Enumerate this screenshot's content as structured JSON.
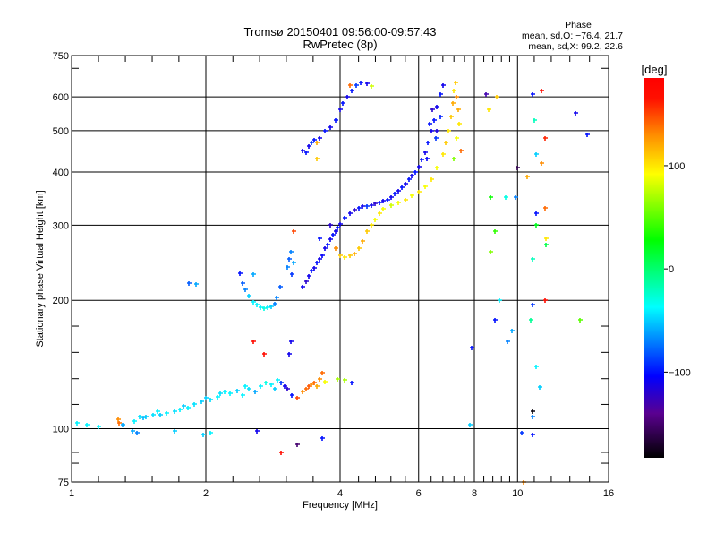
{
  "chart_data": {
    "type": "scatter",
    "title": "Tromsø 20150401 09:56:00-09:57:43",
    "subtitle": "RwPretec (8p)",
    "xlabel": "Frequency [MHz]",
    "ylabel": "Stationary phase Virtual Height [km]",
    "xscale": "log2",
    "yscale": "log10",
    "xlim": [
      1,
      16
    ],
    "ylim": [
      75,
      750
    ],
    "xticks": [
      {
        "value": 1,
        "label": "1"
      },
      {
        "value": 2,
        "label": "2"
      },
      {
        "value": 4,
        "label": "4"
      },
      {
        "value": 6,
        "label": "6"
      },
      {
        "value": 8,
        "label": "8"
      },
      {
        "value": 10,
        "label": "10"
      },
      {
        "value": 16,
        "label": "16"
      }
    ],
    "yticks": [
      {
        "value": 75,
        "label": "75"
      },
      {
        "value": 100,
        "label": "100"
      },
      {
        "value": 200,
        "label": "200"
      },
      {
        "value": 300,
        "label": "300"
      },
      {
        "value": 400,
        "label": "400"
      },
      {
        "value": 500,
        "label": "500"
      },
      {
        "value": 600,
        "label": "600"
      },
      {
        "value": 750,
        "label": "750"
      }
    ],
    "grid": true,
    "stats": {
      "heading": "Phase",
      "line_o": "mean, sd,O: −76.4, 21.7",
      "line_x": "mean, sd,X:  99.2, 22.6"
    },
    "colorbar": {
      "label": "[deg]",
      "range": [
        -183,
        185
      ],
      "ticks": [
        {
          "value": 100,
          "label": "100"
        },
        {
          "value": 0,
          "label": "0"
        },
        {
          "value": -100,
          "label": "−100"
        }
      ],
      "stops": [
        {
          "value": 185,
          "color": "#ff0000"
        },
        {
          "value": 165,
          "color": "#ff1000"
        },
        {
          "value": 130,
          "color": "#ff8c00"
        },
        {
          "value": 92,
          "color": "#ffff00"
        },
        {
          "value": 28,
          "color": "#00ff00"
        },
        {
          "value": -37,
          "color": "#00ffff"
        },
        {
          "value": -104,
          "color": "#0000ff"
        },
        {
          "value": -140,
          "color": "#5a0090"
        },
        {
          "value": -183,
          "color": "#000000"
        }
      ]
    },
    "point_fields": [
      "frequency_mhz",
      "height_km",
      "phase_deg"
    ],
    "points": [
      [
        1.03,
        103,
        -40
      ],
      [
        1.08,
        102,
        -40
      ],
      [
        1.15,
        101,
        -40
      ],
      [
        1.3,
        102,
        -60
      ],
      [
        1.38,
        104,
        -40
      ],
      [
        1.42,
        107,
        -45
      ],
      [
        1.47,
        107,
        -50
      ],
      [
        1.52,
        108,
        -45
      ],
      [
        1.58,
        108,
        -50
      ],
      [
        1.63,
        109,
        -40
      ],
      [
        1.7,
        110,
        -45
      ],
      [
        1.75,
        111,
        -40
      ],
      [
        1.82,
        112,
        -40
      ],
      [
        1.88,
        114,
        -45
      ],
      [
        1.95,
        116,
        -50
      ],
      [
        2.0,
        118,
        -50
      ],
      [
        2.05,
        117,
        -45
      ],
      [
        2.12,
        119,
        -40
      ],
      [
        2.2,
        122,
        -40
      ],
      [
        2.27,
        121,
        -40
      ],
      [
        2.35,
        123,
        -50
      ],
      [
        2.42,
        120,
        -40
      ],
      [
        2.5,
        124,
        -45
      ],
      [
        2.58,
        122,
        -60
      ],
      [
        2.65,
        126,
        -40
      ],
      [
        2.72,
        128,
        -30
      ],
      [
        2.8,
        127,
        -40
      ],
      [
        2.9,
        130,
        -40
      ],
      [
        2.95,
        128,
        -90
      ],
      [
        3.0,
        126,
        -110
      ],
      [
        3.05,
        124,
        -120
      ],
      [
        3.08,
        150,
        -110
      ],
      [
        3.1,
        160,
        -110
      ],
      [
        3.12,
        120,
        -100
      ],
      [
        1.45,
        106,
        -55
      ],
      [
        1.56,
        110,
        -40
      ],
      [
        1.78,
        113,
        -50
      ],
      [
        2.15,
        121,
        -45
      ],
      [
        2.45,
        126,
        -40
      ],
      [
        2.85,
        124,
        -50
      ],
      [
        1.37,
        99,
        -60
      ],
      [
        1.4,
        98,
        -70
      ],
      [
        1.7,
        99,
        -50
      ],
      [
        1.97,
        97,
        -50
      ],
      [
        2.05,
        98,
        -40
      ],
      [
        2.6,
        99,
        -110
      ],
      [
        1.28,
        103,
        140
      ],
      [
        1.27,
        105,
        130
      ],
      [
        3.2,
        118,
        150
      ],
      [
        3.3,
        122,
        130
      ],
      [
        3.35,
        124,
        140
      ],
      [
        3.4,
        126,
        145
      ],
      [
        3.45,
        127,
        130
      ],
      [
        3.5,
        128,
        140
      ],
      [
        3.55,
        126,
        120
      ],
      [
        3.6,
        131,
        130
      ],
      [
        3.65,
        135,
        140
      ],
      [
        3.7,
        129,
        90
      ],
      [
        3.95,
        131,
        70
      ],
      [
        4.1,
        130,
        70
      ],
      [
        4.25,
        128,
        -100
      ],
      [
        2.55,
        160,
        170
      ],
      [
        2.7,
        150,
        170
      ],
      [
        2.95,
        88,
        170
      ],
      [
        3.2,
        92,
        -150
      ],
      [
        3.65,
        95,
        -100
      ],
      [
        2.42,
        220,
        -80
      ],
      [
        2.45,
        212,
        -70
      ],
      [
        2.5,
        205,
        -50
      ],
      [
        2.55,
        198,
        -40
      ],
      [
        2.6,
        195,
        -40
      ],
      [
        2.65,
        193,
        -40
      ],
      [
        2.7,
        192,
        -30
      ],
      [
        2.75,
        193,
        -40
      ],
      [
        2.8,
        194,
        -50
      ],
      [
        2.85,
        196,
        -70
      ],
      [
        2.88,
        203,
        -70
      ],
      [
        2.93,
        215,
        -80
      ],
      [
        2.55,
        230,
        -60
      ],
      [
        1.83,
        220,
        -80
      ],
      [
        1.9,
        218,
        -60
      ],
      [
        2.38,
        232,
        -100
      ],
      [
        3.05,
        240,
        -70
      ],
      [
        3.07,
        250,
        -80
      ],
      [
        3.1,
        260,
        -70
      ],
      [
        3.15,
        245,
        -60
      ],
      [
        3.12,
        230,
        -90
      ],
      [
        3.15,
        290,
        150
      ],
      [
        3.3,
        215,
        -110
      ],
      [
        3.35,
        222,
        -120
      ],
      [
        3.4,
        228,
        -110
      ],
      [
        3.45,
        235,
        -100
      ],
      [
        3.5,
        238,
        -110
      ],
      [
        3.55,
        245,
        -100
      ],
      [
        3.6,
        250,
        -110
      ],
      [
        3.65,
        255,
        -105
      ],
      [
        3.7,
        265,
        -110
      ],
      [
        3.75,
        270,
        -100
      ],
      [
        3.8,
        278,
        -110
      ],
      [
        3.85,
        285,
        -100
      ],
      [
        3.9,
        290,
        -110
      ],
      [
        3.95,
        296,
        -100
      ],
      [
        4.0,
        302,
        -110
      ],
      [
        4.1,
        312,
        -100
      ],
      [
        4.2,
        320,
        -110
      ],
      [
        4.3,
        326,
        -120
      ],
      [
        4.4,
        330,
        -100
      ],
      [
        4.5,
        333,
        -110
      ],
      [
        4.6,
        333,
        -90
      ],
      [
        4.7,
        335,
        -110
      ],
      [
        4.8,
        338,
        -120
      ],
      [
        4.9,
        340,
        -100
      ],
      [
        5.0,
        342,
        -110
      ],
      [
        5.1,
        345,
        -100
      ],
      [
        5.2,
        350,
        -110
      ],
      [
        5.3,
        356,
        -100
      ],
      [
        5.4,
        362,
        -110
      ],
      [
        5.5,
        368,
        -100
      ],
      [
        5.6,
        375,
        -110
      ],
      [
        5.7,
        384,
        -100
      ],
      [
        5.8,
        392,
        -110
      ],
      [
        5.9,
        400,
        -100
      ],
      [
        6.0,
        412,
        -110
      ],
      [
        6.1,
        428,
        -100
      ],
      [
        6.2,
        445,
        -110
      ],
      [
        6.3,
        470,
        -100
      ],
      [
        6.4,
        500,
        -110
      ],
      [
        6.5,
        530,
        -100
      ],
      [
        6.6,
        570,
        -110
      ],
      [
        6.7,
        610,
        -100
      ],
      [
        6.8,
        640,
        -110
      ],
      [
        6.45,
        560,
        -120
      ],
      [
        6.55,
        480,
        -90
      ],
      [
        6.7,
        540,
        -95
      ],
      [
        3.6,
        280,
        -100
      ],
      [
        3.8,
        300,
        -120
      ],
      [
        6.25,
        430,
        -105
      ],
      [
        6.6,
        500,
        -115
      ],
      [
        6.35,
        520,
        -100
      ],
      [
        3.9,
        265,
        130
      ],
      [
        4.0,
        255,
        110
      ],
      [
        4.1,
        253,
        100
      ],
      [
        4.2,
        255,
        110
      ],
      [
        4.3,
        258,
        120
      ],
      [
        4.4,
        265,
        110
      ],
      [
        4.5,
        275,
        120
      ],
      [
        4.6,
        290,
        110
      ],
      [
        4.7,
        300,
        100
      ],
      [
        4.8,
        310,
        90
      ],
      [
        4.9,
        320,
        100
      ],
      [
        5.0,
        328,
        90
      ],
      [
        5.2,
        335,
        80
      ],
      [
        5.4,
        340,
        90
      ],
      [
        5.6,
        345,
        100
      ],
      [
        5.8,
        352,
        90
      ],
      [
        6.0,
        360,
        100
      ],
      [
        6.2,
        370,
        90
      ],
      [
        6.4,
        385,
        100
      ],
      [
        6.6,
        410,
        90
      ],
      [
        6.8,
        440,
        100
      ],
      [
        6.9,
        470,
        110
      ],
      [
        7.0,
        500,
        100
      ],
      [
        7.1,
        540,
        110
      ],
      [
        7.15,
        580,
        120
      ],
      [
        7.2,
        620,
        100
      ],
      [
        7.25,
        650,
        110
      ],
      [
        7.3,
        600,
        130
      ],
      [
        7.35,
        560,
        120
      ],
      [
        7.4,
        520,
        100
      ],
      [
        7.3,
        480,
        90
      ],
      [
        7.45,
        450,
        140
      ],
      [
        7.2,
        430,
        60
      ],
      [
        3.3,
        450,
        -110
      ],
      [
        3.35,
        445,
        -100
      ],
      [
        3.4,
        460,
        -110
      ],
      [
        3.45,
        470,
        -90
      ],
      [
        3.5,
        475,
        -100
      ],
      [
        3.55,
        470,
        120
      ],
      [
        3.6,
        480,
        -110
      ],
      [
        3.7,
        500,
        -100
      ],
      [
        3.8,
        510,
        -110
      ],
      [
        3.9,
        530,
        -100
      ],
      [
        4.0,
        560,
        -110
      ],
      [
        4.05,
        580,
        -100
      ],
      [
        4.15,
        600,
        -110
      ],
      [
        4.25,
        620,
        -100
      ],
      [
        4.35,
        640,
        -90
      ],
      [
        4.45,
        650,
        -100
      ],
      [
        4.6,
        645,
        -110
      ],
      [
        4.7,
        635,
        80
      ],
      [
        3.55,
        430,
        110
      ],
      [
        4.2,
        640,
        140
      ],
      [
        8.5,
        610,
        -130
      ],
      [
        9.0,
        600,
        110
      ],
      [
        8.6,
        560,
        100
      ],
      [
        10.8,
        610,
        -100
      ],
      [
        11.3,
        620,
        170
      ],
      [
        10.9,
        530,
        -20
      ],
      [
        11.5,
        480,
        160
      ],
      [
        11.0,
        440,
        -50
      ],
      [
        10.0,
        410,
        -160
      ],
      [
        10.5,
        390,
        120
      ],
      [
        11.3,
        420,
        130
      ],
      [
        8.7,
        350,
        30
      ],
      [
        9.4,
        350,
        -30
      ],
      [
        9.9,
        350,
        -70
      ],
      [
        11.0,
        320,
        -100
      ],
      [
        11.5,
        330,
        140
      ],
      [
        11.6,
        280,
        100
      ],
      [
        8.9,
        290,
        40
      ],
      [
        11.0,
        300,
        20
      ],
      [
        8.7,
        260,
        60
      ],
      [
        10.8,
        250,
        -20
      ],
      [
        8.9,
        180,
        -100
      ],
      [
        9.1,
        200,
        -40
      ],
      [
        10.7,
        180,
        -10
      ],
      [
        11.5,
        200,
        170
      ],
      [
        10.8,
        195,
        -90
      ],
      [
        13.8,
        180,
        50
      ],
      [
        9.7,
        170,
        -60
      ],
      [
        9.5,
        160,
        -70
      ],
      [
        7.9,
        155,
        -100
      ],
      [
        11.0,
        140,
        -40
      ],
      [
        11.2,
        125,
        -50
      ],
      [
        10.8,
        110,
        -180
      ],
      [
        10.8,
        107,
        -70
      ],
      [
        7.8,
        102,
        -50
      ],
      [
        10.2,
        98,
        -90
      ],
      [
        10.8,
        97,
        -100
      ],
      [
        10.3,
        75,
        130
      ],
      [
        13.5,
        550,
        -110
      ],
      [
        14.3,
        490,
        -100
      ],
      [
        11.6,
        270,
        10
      ]
    ]
  }
}
